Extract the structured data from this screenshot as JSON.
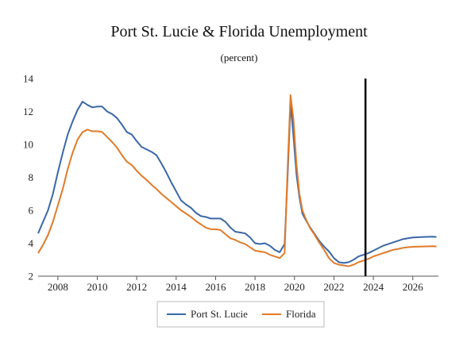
{
  "chart_data": {
    "type": "line",
    "title": "Port St. Lucie & Florida Unemployment",
    "subtitle": "(percent)",
    "xlabel": "",
    "ylabel": "",
    "xlim": [
      2007,
      2027.3
    ],
    "ylim": [
      2,
      14
    ],
    "x_ticks": [
      2008,
      2010,
      2012,
      2014,
      2016,
      2018,
      2020,
      2022,
      2024,
      2026
    ],
    "x_tick_labels": [
      "2008",
      "2010",
      "2012",
      "2014",
      "2016",
      "2018",
      "2020",
      "2022",
      "2024",
      "2026"
    ],
    "y_ticks": [
      2,
      4,
      6,
      8,
      10,
      12,
      14
    ],
    "y_tick_labels": [
      "2",
      "4",
      "6",
      "8",
      "10",
      "12",
      "14"
    ],
    "grid": false,
    "legend_position": "bottom-center",
    "vertical_marker_x": 2023.6,
    "series": [
      {
        "name": "Port St. Lucie",
        "color": "#3a67a7",
        "points": [
          [
            2007.0,
            4.6
          ],
          [
            2007.25,
            5.3
          ],
          [
            2007.5,
            6.0
          ],
          [
            2007.75,
            7.0
          ],
          [
            2008.0,
            8.3
          ],
          [
            2008.25,
            9.5
          ],
          [
            2008.5,
            10.6
          ],
          [
            2008.75,
            11.4
          ],
          [
            2009.0,
            12.1
          ],
          [
            2009.25,
            12.6
          ],
          [
            2009.5,
            12.4
          ],
          [
            2009.75,
            12.25
          ],
          [
            2010.0,
            12.3
          ],
          [
            2010.25,
            12.3
          ],
          [
            2010.5,
            12.0
          ],
          [
            2010.75,
            11.85
          ],
          [
            2011.0,
            11.6
          ],
          [
            2011.25,
            11.2
          ],
          [
            2011.5,
            10.75
          ],
          [
            2011.75,
            10.6
          ],
          [
            2012.0,
            10.2
          ],
          [
            2012.25,
            9.85
          ],
          [
            2012.5,
            9.7
          ],
          [
            2012.75,
            9.55
          ],
          [
            2013.0,
            9.35
          ],
          [
            2013.25,
            8.85
          ],
          [
            2013.5,
            8.3
          ],
          [
            2013.75,
            7.7
          ],
          [
            2014.0,
            7.15
          ],
          [
            2014.25,
            6.6
          ],
          [
            2014.5,
            6.35
          ],
          [
            2014.75,
            6.15
          ],
          [
            2015.0,
            5.85
          ],
          [
            2015.25,
            5.65
          ],
          [
            2015.5,
            5.6
          ],
          [
            2015.75,
            5.5
          ],
          [
            2016.0,
            5.5
          ],
          [
            2016.25,
            5.5
          ],
          [
            2016.5,
            5.3
          ],
          [
            2016.75,
            4.95
          ],
          [
            2017.0,
            4.7
          ],
          [
            2017.25,
            4.65
          ],
          [
            2017.5,
            4.6
          ],
          [
            2017.75,
            4.35
          ],
          [
            2018.0,
            4.0
          ],
          [
            2018.25,
            3.95
          ],
          [
            2018.5,
            4.0
          ],
          [
            2018.75,
            3.85
          ],
          [
            2019.0,
            3.6
          ],
          [
            2019.25,
            3.45
          ],
          [
            2019.5,
            3.95
          ],
          [
            2019.65,
            8.0
          ],
          [
            2019.8,
            12.5
          ],
          [
            2019.95,
            10.5
          ],
          [
            2020.1,
            8.2
          ],
          [
            2020.25,
            6.8
          ],
          [
            2020.4,
            5.8
          ],
          [
            2020.6,
            5.35
          ],
          [
            2020.8,
            4.95
          ],
          [
            2021.0,
            4.6
          ],
          [
            2021.25,
            4.15
          ],
          [
            2021.5,
            3.8
          ],
          [
            2021.75,
            3.5
          ],
          [
            2022.0,
            3.1
          ],
          [
            2022.25,
            2.85
          ],
          [
            2022.5,
            2.8
          ],
          [
            2022.75,
            2.85
          ],
          [
            2023.0,
            3.0
          ],
          [
            2023.25,
            3.2
          ],
          [
            2023.5,
            3.3
          ],
          [
            2023.75,
            3.4
          ],
          [
            2024.0,
            3.55
          ],
          [
            2024.25,
            3.7
          ],
          [
            2024.5,
            3.85
          ],
          [
            2024.75,
            3.95
          ],
          [
            2025.0,
            4.05
          ],
          [
            2025.25,
            4.15
          ],
          [
            2025.5,
            4.25
          ],
          [
            2025.75,
            4.3
          ],
          [
            2026.0,
            4.35
          ],
          [
            2026.5,
            4.38
          ],
          [
            2027.0,
            4.4
          ],
          [
            2027.2,
            4.38
          ]
        ]
      },
      {
        "name": "Florida",
        "color": "#e07b2a",
        "points": [
          [
            2007.0,
            3.4
          ],
          [
            2007.25,
            3.9
          ],
          [
            2007.5,
            4.5
          ],
          [
            2007.75,
            5.3
          ],
          [
            2008.0,
            6.3
          ],
          [
            2008.25,
            7.3
          ],
          [
            2008.5,
            8.5
          ],
          [
            2008.75,
            9.5
          ],
          [
            2009.0,
            10.3
          ],
          [
            2009.25,
            10.75
          ],
          [
            2009.5,
            10.9
          ],
          [
            2009.75,
            10.8
          ],
          [
            2010.0,
            10.8
          ],
          [
            2010.25,
            10.75
          ],
          [
            2010.5,
            10.45
          ],
          [
            2010.75,
            10.15
          ],
          [
            2011.0,
            9.8
          ],
          [
            2011.25,
            9.35
          ],
          [
            2011.5,
            8.95
          ],
          [
            2011.75,
            8.75
          ],
          [
            2012.0,
            8.4
          ],
          [
            2012.25,
            8.1
          ],
          [
            2012.5,
            7.85
          ],
          [
            2012.75,
            7.55
          ],
          [
            2013.0,
            7.3
          ],
          [
            2013.25,
            7.0
          ],
          [
            2013.5,
            6.75
          ],
          [
            2013.75,
            6.5
          ],
          [
            2014.0,
            6.25
          ],
          [
            2014.25,
            6.0
          ],
          [
            2014.5,
            5.8
          ],
          [
            2014.75,
            5.6
          ],
          [
            2015.0,
            5.35
          ],
          [
            2015.25,
            5.15
          ],
          [
            2015.5,
            4.95
          ],
          [
            2015.75,
            4.85
          ],
          [
            2016.0,
            4.85
          ],
          [
            2016.25,
            4.8
          ],
          [
            2016.5,
            4.55
          ],
          [
            2016.75,
            4.3
          ],
          [
            2017.0,
            4.2
          ],
          [
            2017.25,
            4.05
          ],
          [
            2017.5,
            3.95
          ],
          [
            2017.75,
            3.75
          ],
          [
            2018.0,
            3.55
          ],
          [
            2018.25,
            3.5
          ],
          [
            2018.5,
            3.45
          ],
          [
            2018.75,
            3.3
          ],
          [
            2019.0,
            3.2
          ],
          [
            2019.25,
            3.1
          ],
          [
            2019.5,
            3.4
          ],
          [
            2019.65,
            8.5
          ],
          [
            2019.8,
            13.0
          ],
          [
            2019.95,
            11.5
          ],
          [
            2020.1,
            8.8
          ],
          [
            2020.25,
            7.0
          ],
          [
            2020.4,
            6.0
          ],
          [
            2020.6,
            5.4
          ],
          [
            2020.8,
            4.9
          ],
          [
            2021.0,
            4.55
          ],
          [
            2021.25,
            4.05
          ],
          [
            2021.5,
            3.6
          ],
          [
            2021.75,
            3.1
          ],
          [
            2022.0,
            2.8
          ],
          [
            2022.25,
            2.7
          ],
          [
            2022.5,
            2.65
          ],
          [
            2022.75,
            2.6
          ],
          [
            2023.0,
            2.7
          ],
          [
            2023.25,
            2.85
          ],
          [
            2023.5,
            2.95
          ],
          [
            2023.75,
            3.05
          ],
          [
            2024.0,
            3.2
          ],
          [
            2024.25,
            3.3
          ],
          [
            2024.5,
            3.4
          ],
          [
            2024.75,
            3.5
          ],
          [
            2025.0,
            3.6
          ],
          [
            2025.25,
            3.65
          ],
          [
            2025.5,
            3.72
          ],
          [
            2025.75,
            3.76
          ],
          [
            2026.0,
            3.78
          ],
          [
            2026.5,
            3.8
          ],
          [
            2027.0,
            3.82
          ],
          [
            2027.2,
            3.8
          ]
        ]
      }
    ]
  }
}
